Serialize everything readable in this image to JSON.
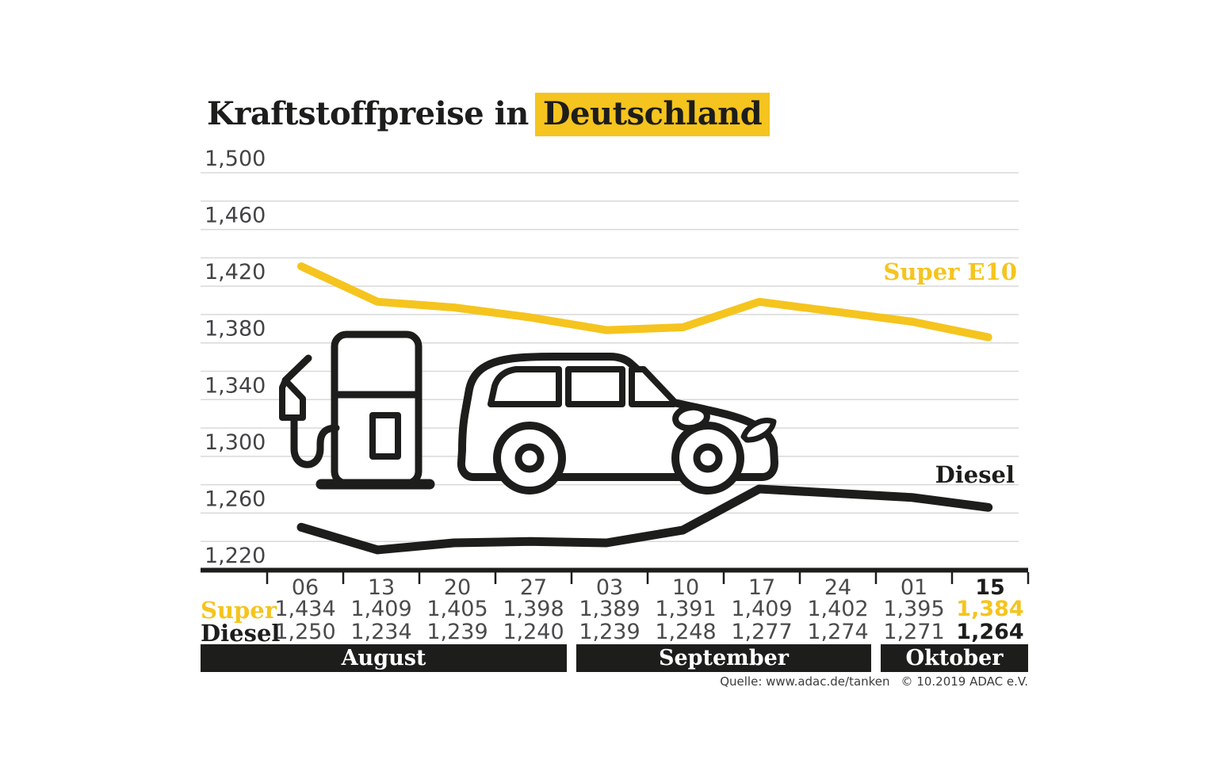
{
  "title": {
    "prefix": "Kraftstoffpreise in",
    "highlight": "Deutschland"
  },
  "colors": {
    "accent": "#f5c41e",
    "black": "#1d1d1b",
    "value_gray": "#4b4b4d",
    "gridline": "#d9d9d9",
    "band_bg": "#1d1d1b",
    "band_text": "#ffffff"
  },
  "chart_data": {
    "type": "line",
    "title": "Kraftstoffpreise in Deutschland",
    "x": [
      "06",
      "13",
      "20",
      "27",
      "03",
      "10",
      "17",
      "24",
      "01",
      "15"
    ],
    "series": [
      {
        "name": "Super E10",
        "color": "#f5c41e",
        "values": [
          1.434,
          1.409,
          1.405,
          1.398,
          1.389,
          1.391,
          1.409,
          1.402,
          1.395,
          1.384
        ]
      },
      {
        "name": "Diesel",
        "color": "#1d1d1b",
        "values": [
          1.25,
          1.234,
          1.239,
          1.24,
          1.239,
          1.248,
          1.277,
          1.274,
          1.271,
          1.264
        ]
      }
    ],
    "ylim": [
      1.22,
      1.5
    ],
    "ytick_minor_step": 0.02,
    "ytick_label_step": 0.04,
    "ytick_labels": [
      "1,220",
      "1,260",
      "1,300",
      "1,340",
      "1,380",
      "1,420",
      "1,460",
      "1,500"
    ],
    "grid": true,
    "legend_position": "inline-right",
    "decimal_separator": ","
  },
  "table": {
    "super_label": "Super",
    "diesel_label": "Diesel",
    "super_values": [
      "1,434",
      "1,409",
      "1,405",
      "1,398",
      "1,389",
      "1,391",
      "1,409",
      "1,402",
      "1,395",
      "1,384"
    ],
    "diesel_values": [
      "1,250",
      "1,234",
      "1,239",
      "1,240",
      "1,239",
      "1,248",
      "1,277",
      "1,274",
      "1,271",
      "1,264"
    ],
    "highlight_last_column": true
  },
  "months": [
    {
      "label": "August",
      "span": 4
    },
    {
      "label": "September",
      "span": 4
    },
    {
      "label": "Oktober",
      "span": 2
    }
  ],
  "source": {
    "quelle": "Quelle: www.adac.de/tanken",
    "copyright": "© 10.2019  ADAC e.V."
  },
  "icons": [
    "fuel-pump-icon",
    "car-icon"
  ]
}
